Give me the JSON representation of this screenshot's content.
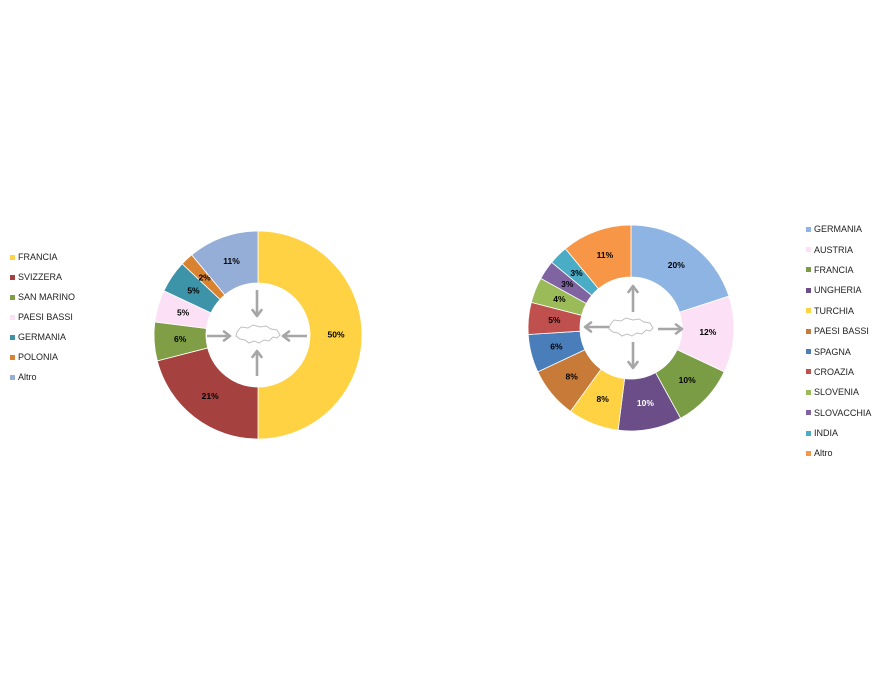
{
  "chart_data": [
    {
      "type": "pie",
      "title": "",
      "slices": [
        {
          "label": "FRANCIA",
          "value": 50,
          "display": "50%",
          "color": "#FFD243",
          "label_color": "#000000"
        },
        {
          "label": "SVIZZERA",
          "value": 21,
          "display": "21%",
          "color": "#A5413F",
          "label_color": "#000000"
        },
        {
          "label": "SAN MARINO",
          "value": 6,
          "display": "6%",
          "color": "#7F9E45",
          "label_color": "#000000"
        },
        {
          "label": "PAESI BASSI",
          "value": 5,
          "display": "5%",
          "color": "#FCE1F6",
          "label_color": "#000000"
        },
        {
          "label": "GERMANIA",
          "value": 5,
          "display": "5%",
          "color": "#3D93A8",
          "label_color": "#000000"
        },
        {
          "label": "POLONIA",
          "value": 2,
          "display": "2%",
          "color": "#D9822F",
          "label_color": "#000000"
        },
        {
          "label": "Altro",
          "value": 11,
          "display": "11%",
          "color": "#95AED7",
          "label_color": "#000000"
        }
      ],
      "legend_position": "left",
      "arrow_direction": "inward"
    },
    {
      "type": "pie",
      "title": "",
      "slices": [
        {
          "label": "GERMANIA",
          "value": 20,
          "display": "20%",
          "color": "#8EB4E3",
          "label_color": "#000000"
        },
        {
          "label": "AUSTRIA",
          "value": 12,
          "display": "12%",
          "color": "#FCE1F6",
          "label_color": "#000000"
        },
        {
          "label": "FRANCIA",
          "value": 10,
          "display": "10%",
          "color": "#7A9C45",
          "label_color": "#000000"
        },
        {
          "label": "UNGHERIA",
          "value": 10,
          "display": "10%",
          "color": "#6B4E88",
          "label_color": "#ffffff"
        },
        {
          "label": "TURCHIA",
          "value": 8,
          "display": "8%",
          "color": "#FFD243",
          "label_color": "#000000"
        },
        {
          "label": "PAESI BASSI",
          "value": 8,
          "display": "8%",
          "color": "#C87A38",
          "label_color": "#000000"
        },
        {
          "label": "SPAGNA",
          "value": 6,
          "display": "6%",
          "color": "#4A7EBB",
          "label_color": "#000000"
        },
        {
          "label": "CROAZIA",
          "value": 5,
          "display": "5%",
          "color": "#C0504D",
          "label_color": "#000000"
        },
        {
          "label": "SLOVENIA",
          "value": 4,
          "display": "4%",
          "color": "#9BBB59",
          "label_color": "#000000"
        },
        {
          "label": "SLOVACCHIA",
          "value": 3,
          "display": "3%",
          "color": "#8064A2",
          "label_color": "#000000"
        },
        {
          "label": "INDIA",
          "value": 3,
          "display": "3%",
          "color": "#4BACC6",
          "label_color": "#000000"
        },
        {
          "label": "Altro",
          "value": 11,
          "display": "11%",
          "color": "#F79646",
          "label_color": "#000000"
        }
      ],
      "legend_position": "right",
      "arrow_direction": "outward"
    }
  ]
}
